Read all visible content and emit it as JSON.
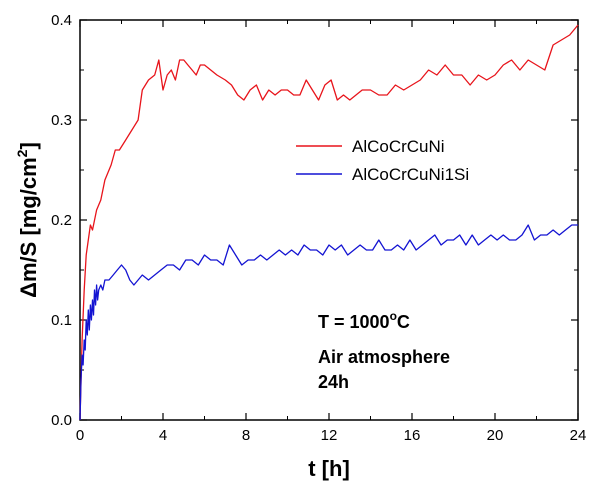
{
  "chart_data": {
    "type": "line",
    "xlabel": "t [h]",
    "ylabel": "Δm/S [mg/cm",
    "ylabel_sup": "2",
    "ylabel_end": "]",
    "xlim": [
      0,
      24
    ],
    "ylim": [
      0,
      0.4
    ],
    "x_ticks": [
      0,
      4,
      8,
      12,
      16,
      20,
      24
    ],
    "x_tick_labels": [
      "0",
      "4",
      "8",
      "12",
      "16",
      "20",
      "24"
    ],
    "y_ticks": [
      0.0,
      0.1,
      0.2,
      0.3,
      0.4
    ],
    "y_tick_labels": [
      "0.0",
      "0.1",
      "0.2",
      "0.3",
      "0.4"
    ],
    "grid": false,
    "legend_position": "right-middle",
    "series": [
      {
        "name": "AlCoCrCuNi",
        "color": "#e8141b",
        "x": [
          0,
          0.1,
          0.2,
          0.3,
          0.4,
          0.5,
          0.6,
          0.8,
          1.0,
          1.2,
          1.5,
          1.7,
          1.9,
          2.2,
          2.5,
          2.8,
          3.0,
          3.3,
          3.6,
          3.8,
          4.0,
          4.2,
          4.4,
          4.6,
          4.8,
          5.0,
          5.2,
          5.4,
          5.6,
          5.8,
          6.0,
          6.3,
          6.6,
          7.0,
          7.3,
          7.6,
          7.9,
          8.2,
          8.5,
          8.8,
          9.1,
          9.4,
          9.7,
          10.0,
          10.3,
          10.6,
          10.9,
          11.2,
          11.5,
          11.8,
          12.1,
          12.4,
          12.7,
          13.0,
          13.3,
          13.6,
          14.0,
          14.4,
          14.8,
          15.2,
          15.6,
          16.0,
          16.4,
          16.8,
          17.2,
          17.6,
          18.0,
          18.4,
          18.8,
          19.2,
          19.6,
          20.0,
          20.4,
          20.8,
          21.2,
          21.6,
          22.0,
          22.4,
          22.8,
          23.2,
          23.6,
          24.0
        ],
        "y": [
          0.0,
          0.08,
          0.13,
          0.165,
          0.18,
          0.195,
          0.19,
          0.21,
          0.22,
          0.24,
          0.255,
          0.27,
          0.27,
          0.28,
          0.29,
          0.3,
          0.33,
          0.34,
          0.345,
          0.36,
          0.33,
          0.345,
          0.35,
          0.34,
          0.36,
          0.36,
          0.355,
          0.35,
          0.345,
          0.355,
          0.355,
          0.35,
          0.345,
          0.34,
          0.335,
          0.325,
          0.32,
          0.33,
          0.335,
          0.32,
          0.33,
          0.325,
          0.33,
          0.33,
          0.325,
          0.325,
          0.34,
          0.33,
          0.32,
          0.335,
          0.34,
          0.32,
          0.325,
          0.32,
          0.325,
          0.33,
          0.33,
          0.325,
          0.325,
          0.335,
          0.33,
          0.335,
          0.34,
          0.35,
          0.345,
          0.355,
          0.345,
          0.345,
          0.335,
          0.345,
          0.34,
          0.345,
          0.355,
          0.36,
          0.35,
          0.36,
          0.355,
          0.35,
          0.375,
          0.38,
          0.385,
          0.395
        ]
      },
      {
        "name": "AlCoCrCuNi1Si",
        "color": "#1414d2",
        "x": [
          0,
          0.05,
          0.1,
          0.15,
          0.2,
          0.25,
          0.3,
          0.35,
          0.4,
          0.45,
          0.5,
          0.55,
          0.6,
          0.65,
          0.7,
          0.75,
          0.8,
          0.85,
          0.9,
          1.0,
          1.1,
          1.2,
          1.4,
          1.6,
          1.8,
          2.0,
          2.2,
          2.4,
          2.6,
          2.8,
          3.0,
          3.3,
          3.6,
          3.9,
          4.2,
          4.5,
          4.8,
          5.1,
          5.4,
          5.7,
          6.0,
          6.3,
          6.6,
          6.9,
          7.2,
          7.5,
          7.8,
          8.1,
          8.4,
          8.7,
          9.0,
          9.3,
          9.6,
          9.9,
          10.2,
          10.5,
          10.8,
          11.1,
          11.4,
          11.7,
          12.0,
          12.3,
          12.6,
          12.9,
          13.2,
          13.5,
          13.8,
          14.1,
          14.4,
          14.7,
          15.0,
          15.3,
          15.6,
          15.9,
          16.2,
          16.5,
          16.8,
          17.1,
          17.4,
          17.7,
          18.0,
          18.3,
          18.6,
          18.9,
          19.2,
          19.5,
          19.8,
          20.1,
          20.4,
          20.7,
          21.0,
          21.3,
          21.6,
          21.9,
          22.2,
          22.5,
          22.8,
          23.1,
          23.4,
          23.7,
          24.0
        ],
        "y": [
          0.0,
          0.04,
          0.065,
          0.055,
          0.08,
          0.07,
          0.1,
          0.085,
          0.11,
          0.09,
          0.115,
          0.1,
          0.12,
          0.105,
          0.13,
          0.115,
          0.135,
          0.12,
          0.13,
          0.135,
          0.13,
          0.14,
          0.14,
          0.145,
          0.15,
          0.155,
          0.15,
          0.14,
          0.135,
          0.14,
          0.145,
          0.14,
          0.145,
          0.15,
          0.155,
          0.155,
          0.15,
          0.16,
          0.16,
          0.155,
          0.165,
          0.16,
          0.16,
          0.155,
          0.175,
          0.165,
          0.155,
          0.16,
          0.16,
          0.165,
          0.16,
          0.165,
          0.17,
          0.165,
          0.17,
          0.165,
          0.175,
          0.17,
          0.17,
          0.165,
          0.175,
          0.17,
          0.175,
          0.165,
          0.17,
          0.175,
          0.17,
          0.17,
          0.18,
          0.17,
          0.17,
          0.175,
          0.17,
          0.18,
          0.17,
          0.175,
          0.18,
          0.185,
          0.175,
          0.18,
          0.18,
          0.185,
          0.175,
          0.185,
          0.175,
          0.18,
          0.185,
          0.18,
          0.185,
          0.18,
          0.18,
          0.185,
          0.195,
          0.18,
          0.185,
          0.185,
          0.19,
          0.185,
          0.19,
          0.195,
          0.195
        ]
      }
    ],
    "annotations": {
      "temperature_prefix": "T = 1000",
      "temperature_sup": "o",
      "temperature_suffix": "C",
      "atmosphere": "Air atmosphere",
      "duration": "24h"
    }
  }
}
